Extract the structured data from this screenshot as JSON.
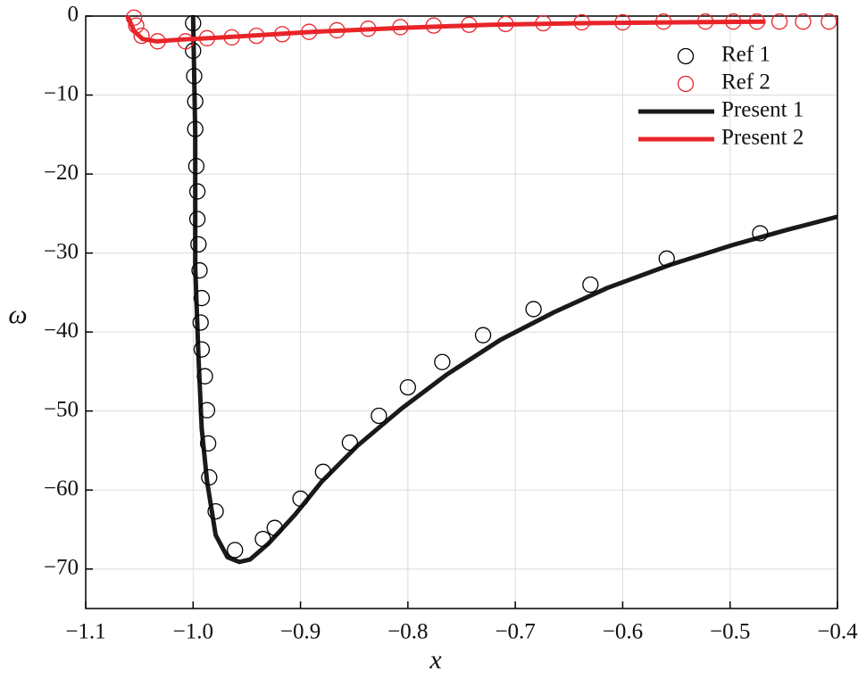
{
  "chart_data": {
    "type": "line",
    "xlabel": "x",
    "ylabel": "ω",
    "xlim": [
      -1.1,
      -0.4
    ],
    "xticks": [
      {
        "value": -1.1,
        "label": "−1.1"
      },
      {
        "value": -1.0,
        "label": "−1.0"
      },
      {
        "value": -0.9,
        "label": "−0.9"
      },
      {
        "value": -0.8,
        "label": "−0.8"
      },
      {
        "value": -0.7,
        "label": "−0.7"
      },
      {
        "value": -0.6,
        "label": "−0.6"
      },
      {
        "value": -0.5,
        "label": "−0.5"
      },
      {
        "value": -0.4,
        "label": "−0.4"
      }
    ],
    "ylim": [
      -75,
      0
    ],
    "yticks": [
      0,
      {
        "value": -10,
        "label": "−10"
      },
      {
        "value": -20,
        "label": "−20"
      },
      {
        "value": -30,
        "label": "−30"
      },
      {
        "value": -40,
        "label": "−40"
      },
      {
        "value": -50,
        "label": "−50"
      },
      {
        "value": -60,
        "label": "−60"
      },
      {
        "value": -70,
        "label": "−70"
      }
    ],
    "grid": true,
    "legend": "upper right",
    "series": [
      {
        "name": "Ref 1",
        "type": "scatter",
        "color": "#000000",
        "x": [
          -1.0,
          -1.0,
          -0.999,
          -0.998,
          -0.998,
          -0.997,
          -0.996,
          -0.996,
          -0.995,
          -0.994,
          -0.992,
          -0.993,
          -0.992,
          -0.989,
          -0.987,
          -0.986,
          -0.985,
          -0.979,
          -0.961,
          -0.935,
          -0.924,
          -0.9,
          -0.879,
          -0.854,
          -0.827,
          -0.8,
          -0.768,
          -0.73,
          -0.683,
          -0.63,
          -0.559,
          -0.472
        ],
        "values": [
          -0.9,
          -4.4,
          -7.6,
          -10.8,
          -14.3,
          -19.0,
          -22.2,
          -25.7,
          -28.9,
          -32.2,
          -35.7,
          -38.8,
          -42.2,
          -45.6,
          -49.9,
          -54.1,
          -58.4,
          -62.7,
          -67.6,
          -66.2,
          -64.8,
          -61.1,
          -57.7,
          -54.0,
          -50.6,
          -47.0,
          -43.8,
          -40.4,
          -37.1,
          -34.0,
          -30.7,
          -27.5
        ]
      },
      {
        "name": "Ref 2",
        "type": "scatter",
        "color": "#e8242a",
        "x": [
          -1.055,
          -1.053,
          -1.048,
          -1.033,
          -1.007,
          -0.987,
          -0.964,
          -0.941,
          -0.917,
          -0.892,
          -0.866,
          -0.837,
          -0.807,
          -0.776,
          -0.743,
          -0.709,
          -0.674,
          -0.638,
          -0.6,
          -0.562,
          -0.523,
          -0.497,
          -0.475,
          -0.454,
          -0.432,
          -0.408
        ],
        "values": [
          -0.2,
          -1.2,
          -2.5,
          -3.2,
          -3.2,
          -2.8,
          -2.7,
          -2.5,
          -2.3,
          -2.0,
          -1.8,
          -1.6,
          -1.4,
          -1.2,
          -1.1,
          -1.0,
          -0.9,
          -0.8,
          -0.8,
          -0.7,
          -0.7,
          -0.7,
          -0.7,
          -0.7,
          -0.7,
          -0.7
        ]
      },
      {
        "name": "Present 1",
        "type": "line",
        "color": "#1a1a1a",
        "x": [
          -1.0,
          -0.998,
          -0.998,
          -0.995,
          -0.992,
          -0.987,
          -0.979,
          -0.968,
          -0.957,
          -0.947,
          -0.93,
          -0.905,
          -0.88,
          -0.847,
          -0.806,
          -0.764,
          -0.714,
          -0.664,
          -0.614,
          -0.556,
          -0.498,
          -0.448,
          -0.4
        ],
        "values": [
          0,
          -14.9,
          -31.8,
          -43.1,
          -52.2,
          -58.9,
          -65.7,
          -68.5,
          -69.1,
          -68.8,
          -66.8,
          -63.1,
          -58.9,
          -54.4,
          -49.7,
          -45.4,
          -41.0,
          -37.5,
          -34.4,
          -31.5,
          -29.0,
          -27.1,
          -25.4
        ]
      },
      {
        "name": "Present 2",
        "type": "line",
        "color": "#e8242a",
        "x": [
          -1.061,
          -1.055,
          -1.047,
          -1.034,
          -1.014,
          -0.972,
          -0.889,
          -0.806,
          -0.723,
          -0.639,
          -0.556,
          -0.467
        ],
        "values": [
          0,
          -1.9,
          -2.9,
          -3.2,
          -3.0,
          -2.7,
          -2.0,
          -1.5,
          -1.1,
          -0.9,
          -0.8,
          -0.7
        ]
      }
    ]
  }
}
